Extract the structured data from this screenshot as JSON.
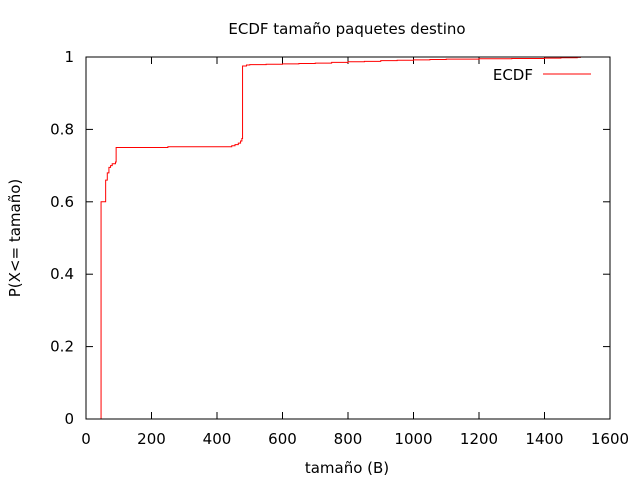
{
  "chart_data": {
    "type": "line",
    "step": true,
    "title": "ECDF tamaño paquetes destino",
    "xlabel": "tamaño (B)",
    "ylabel": "P(X<= tamaño)",
    "xlim": [
      0,
      1600
    ],
    "ylim": [
      0,
      1
    ],
    "xticks": [
      "0",
      "200",
      "400",
      "600",
      "800",
      "1000",
      "1200",
      "1400",
      "1600"
    ],
    "yticks": [
      "0",
      "0.2",
      "0.4",
      "0.6",
      "0.8",
      "1"
    ],
    "grid": false,
    "legend_position": "top-right",
    "series": [
      {
        "name": "ECDF",
        "color": "#ff0000",
        "x": [
          46,
          46,
          60,
          60,
          65,
          70,
          75,
          80,
          85,
          90,
          92,
          100,
          150,
          200,
          250,
          300,
          350,
          400,
          430,
          445,
          455,
          465,
          472,
          476,
          478,
          478,
          490,
          500,
          550,
          600,
          650,
          700,
          750,
          800,
          850,
          900,
          950,
          1000,
          1050,
          1100,
          1200,
          1300,
          1400,
          1450,
          1500,
          1510
        ],
        "y": [
          0.0,
          0.6,
          0.6,
          0.66,
          0.68,
          0.695,
          0.7,
          0.705,
          0.705,
          0.71,
          0.75,
          0.75,
          0.75,
          0.75,
          0.752,
          0.752,
          0.752,
          0.752,
          0.752,
          0.755,
          0.758,
          0.762,
          0.768,
          0.775,
          0.79,
          0.975,
          0.978,
          0.979,
          0.98,
          0.981,
          0.982,
          0.983,
          0.985,
          0.987,
          0.988,
          0.99,
          0.991,
          0.992,
          0.993,
          0.994,
          0.995,
          0.996,
          0.997,
          0.998,
          0.999,
          1.0
        ]
      }
    ]
  }
}
